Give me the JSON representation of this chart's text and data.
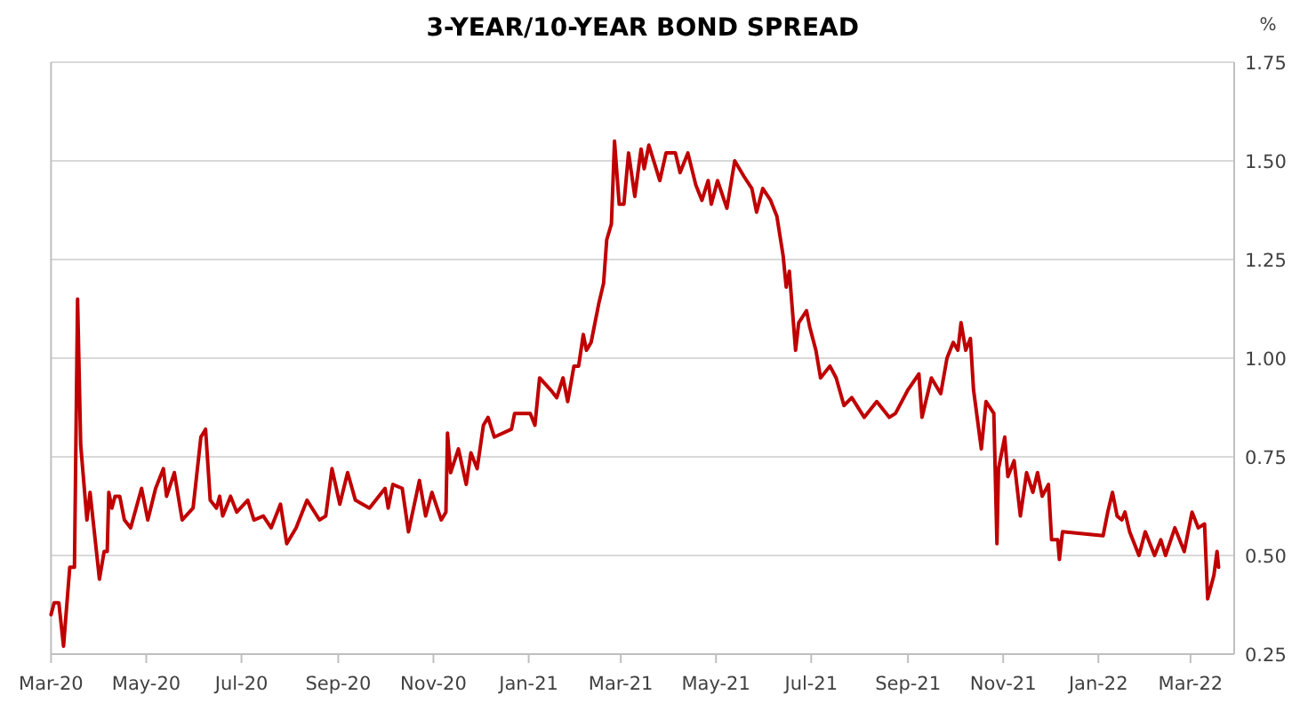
{
  "chart_data": {
    "type": "line",
    "title": "3-YEAR/10-YEAR BOND SPREAD",
    "ylabel": "%",
    "xlim": [
      "2020-03-01",
      "2022-03-29"
    ],
    "xticks": [
      {
        "value": "2020-03-01",
        "label": "Mar-20"
      },
      {
        "value": "2020-05-01",
        "label": "May-20"
      },
      {
        "value": "2020-07-01",
        "label": "Jul-20"
      },
      {
        "value": "2020-09-01",
        "label": "Sep-20"
      },
      {
        "value": "2020-11-01",
        "label": "Nov-20"
      },
      {
        "value": "2021-01-01",
        "label": "Jan-21"
      },
      {
        "value": "2021-03-01",
        "label": "Mar-21"
      },
      {
        "value": "2021-05-01",
        "label": "May-21"
      },
      {
        "value": "2021-07-01",
        "label": "Jul-21"
      },
      {
        "value": "2021-09-01",
        "label": "Sep-21"
      },
      {
        "value": "2021-11-01",
        "label": "Nov-21"
      },
      {
        "value": "2022-01-01",
        "label": "Jan-22"
      },
      {
        "value": "2022-03-01",
        "label": "Mar-22"
      }
    ],
    "ylim": [
      0.25,
      1.75
    ],
    "yticks": [
      {
        "value": 0.25,
        "label": "0.25"
      },
      {
        "value": 0.5,
        "label": "0.50"
      },
      {
        "value": 0.75,
        "label": "0.75"
      },
      {
        "value": 1,
        "label": "1.00"
      },
      {
        "value": 1.25,
        "label": "1.25"
      },
      {
        "value": 1.5,
        "label": "1.50"
      },
      {
        "value": 1.75,
        "label": "1.75"
      }
    ],
    "grid": "y",
    "marker": "none",
    "line_style": "solid",
    "series": [
      {
        "color": "#c00000",
        "x": [
          "2020-03-01",
          "2020-03-03",
          "2020-03-06",
          "2020-03-09",
          "2020-03-13",
          "2020-03-16",
          "2020-03-18",
          "2020-03-20",
          "2020-03-24",
          "2020-03-26",
          "2020-04-01",
          "2020-04-04",
          "2020-04-06",
          "2020-04-07",
          "2020-04-09",
          "2020-04-11",
          "2020-04-14",
          "2020-04-17",
          "2020-04-21",
          "2020-04-28",
          "2020-05-02",
          "2020-05-07",
          "2020-05-12",
          "2020-05-14",
          "2020-05-19",
          "2020-05-24",
          "2020-05-31",
          "2020-06-05",
          "2020-06-08",
          "2020-06-11",
          "2020-06-15",
          "2020-06-17",
          "2020-06-19",
          "2020-06-24",
          "2020-06-28",
          "2020-07-05",
          "2020-07-09",
          "2020-07-15",
          "2020-07-20",
          "2020-07-26",
          "2020-07-30",
          "2020-08-05",
          "2020-08-12",
          "2020-08-20",
          "2020-08-24",
          "2020-08-28",
          "2020-09-02",
          "2020-09-07",
          "2020-09-12",
          "2020-09-21",
          "2020-10-01",
          "2020-10-03",
          "2020-10-06",
          "2020-10-12",
          "2020-10-16",
          "2020-10-23",
          "2020-10-27",
          "2020-10-31",
          "2020-11-06",
          "2020-11-09",
          "2020-11-10",
          "2020-11-12",
          "2020-11-17",
          "2020-11-22",
          "2020-11-25",
          "2020-11-29",
          "2020-12-03",
          "2020-12-06",
          "2020-12-10",
          "2020-12-21",
          "2020-12-23",
          "2021-01-02",
          "2021-01-05",
          "2021-01-08",
          "2021-01-15",
          "2021-01-19",
          "2021-01-23",
          "2021-01-26",
          "2021-01-30",
          "2021-02-02",
          "2021-02-05",
          "2021-02-07",
          "2021-02-10",
          "2021-02-15",
          "2021-02-18",
          "2021-02-20",
          "2021-02-23",
          "2021-02-25",
          "2021-02-28",
          "2021-03-03",
          "2021-03-06",
          "2021-03-10",
          "2021-03-14",
          "2021-03-16",
          "2021-03-19",
          "2021-03-26",
          "2021-03-30",
          "2021-04-05",
          "2021-04-08",
          "2021-04-13",
          "2021-04-18",
          "2021-04-22",
          "2021-04-26",
          "2021-04-28",
          "2021-05-02",
          "2021-05-08",
          "2021-05-13",
          "2021-05-19",
          "2021-05-24",
          "2021-05-27",
          "2021-05-31",
          "2021-06-05",
          "2021-06-09",
          "2021-06-13",
          "2021-06-15",
          "2021-06-17",
          "2021-06-21",
          "2021-06-23",
          "2021-06-28",
          "2021-06-30",
          "2021-07-04",
          "2021-07-07",
          "2021-07-13",
          "2021-07-17",
          "2021-07-22",
          "2021-07-27",
          "2021-08-04",
          "2021-08-12",
          "2021-08-20",
          "2021-08-24",
          "2021-09-01",
          "2021-09-08",
          "2021-09-10",
          "2021-09-16",
          "2021-09-22",
          "2021-09-26",
          "2021-09-30",
          "2021-10-03",
          "2021-10-05",
          "2021-10-08",
          "2021-10-11",
          "2021-10-13",
          "2021-10-18",
          "2021-10-21",
          "2021-10-26",
          "2021-10-28",
          "2021-10-29",
          "2021-11-02",
          "2021-11-04",
          "2021-11-08",
          "2021-11-12",
          "2021-11-16",
          "2021-11-20",
          "2021-11-23",
          "2021-11-26",
          "2021-11-30",
          "2021-12-02",
          "2021-12-06",
          "2021-12-07",
          "2021-12-09",
          "2022-01-04",
          "2022-01-07",
          "2022-01-10",
          "2022-01-13",
          "2022-01-16",
          "2022-01-18",
          "2022-01-21",
          "2022-01-27",
          "2022-01-31",
          "2022-02-06",
          "2022-02-10",
          "2022-02-13",
          "2022-02-19",
          "2022-02-25",
          "2022-03-02",
          "2022-03-06",
          "2022-03-10",
          "2022-03-12",
          "2022-03-16",
          "2022-03-18",
          "2022-03-19"
        ],
        "values": [
          0.35,
          0.38,
          0.38,
          0.27,
          0.47,
          0.47,
          1.15,
          0.78,
          0.59,
          0.66,
          0.44,
          0.51,
          0.51,
          0.66,
          0.62,
          0.65,
          0.65,
          0.59,
          0.57,
          0.67,
          0.59,
          0.67,
          0.72,
          0.65,
          0.71,
          0.59,
          0.62,
          0.8,
          0.82,
          0.64,
          0.62,
          0.65,
          0.6,
          0.65,
          0.61,
          0.64,
          0.59,
          0.6,
          0.57,
          0.63,
          0.53,
          0.57,
          0.64,
          0.59,
          0.6,
          0.72,
          0.63,
          0.71,
          0.64,
          0.62,
          0.67,
          0.62,
          0.68,
          0.67,
          0.56,
          0.69,
          0.6,
          0.66,
          0.59,
          0.61,
          0.81,
          0.71,
          0.77,
          0.68,
          0.76,
          0.72,
          0.83,
          0.85,
          0.8,
          0.82,
          0.86,
          0.86,
          0.83,
          0.95,
          0.92,
          0.9,
          0.95,
          0.89,
          0.98,
          0.98,
          1.06,
          1.02,
          1.04,
          1.14,
          1.19,
          1.3,
          1.34,
          1.55,
          1.39,
          1.39,
          1.52,
          1.41,
          1.53,
          1.48,
          1.54,
          1.45,
          1.52,
          1.52,
          1.47,
          1.52,
          1.44,
          1.4,
          1.45,
          1.39,
          1.45,
          1.38,
          1.5,
          1.46,
          1.43,
          1.37,
          1.43,
          1.4,
          1.36,
          1.26,
          1.18,
          1.22,
          1.02,
          1.09,
          1.12,
          1.08,
          1.02,
          0.95,
          0.98,
          0.95,
          0.88,
          0.9,
          0.85,
          0.89,
          0.85,
          0.86,
          0.92,
          0.96,
          0.85,
          0.95,
          0.91,
          1,
          1.04,
          1.02,
          1.09,
          1.02,
          1.05,
          0.92,
          0.77,
          0.89,
          0.86,
          0.53,
          0.72,
          0.8,
          0.7,
          0.74,
          0.6,
          0.71,
          0.66,
          0.71,
          0.65,
          0.68,
          0.54,
          0.54,
          0.49,
          0.56,
          0.55,
          0.61,
          0.66,
          0.6,
          0.59,
          0.61,
          0.56,
          0.5,
          0.56,
          0.5,
          0.54,
          0.5,
          0.57,
          0.51,
          0.61,
          0.57,
          0.58,
          0.39,
          0.45,
          0.51,
          0.47
        ]
      }
    ]
  }
}
